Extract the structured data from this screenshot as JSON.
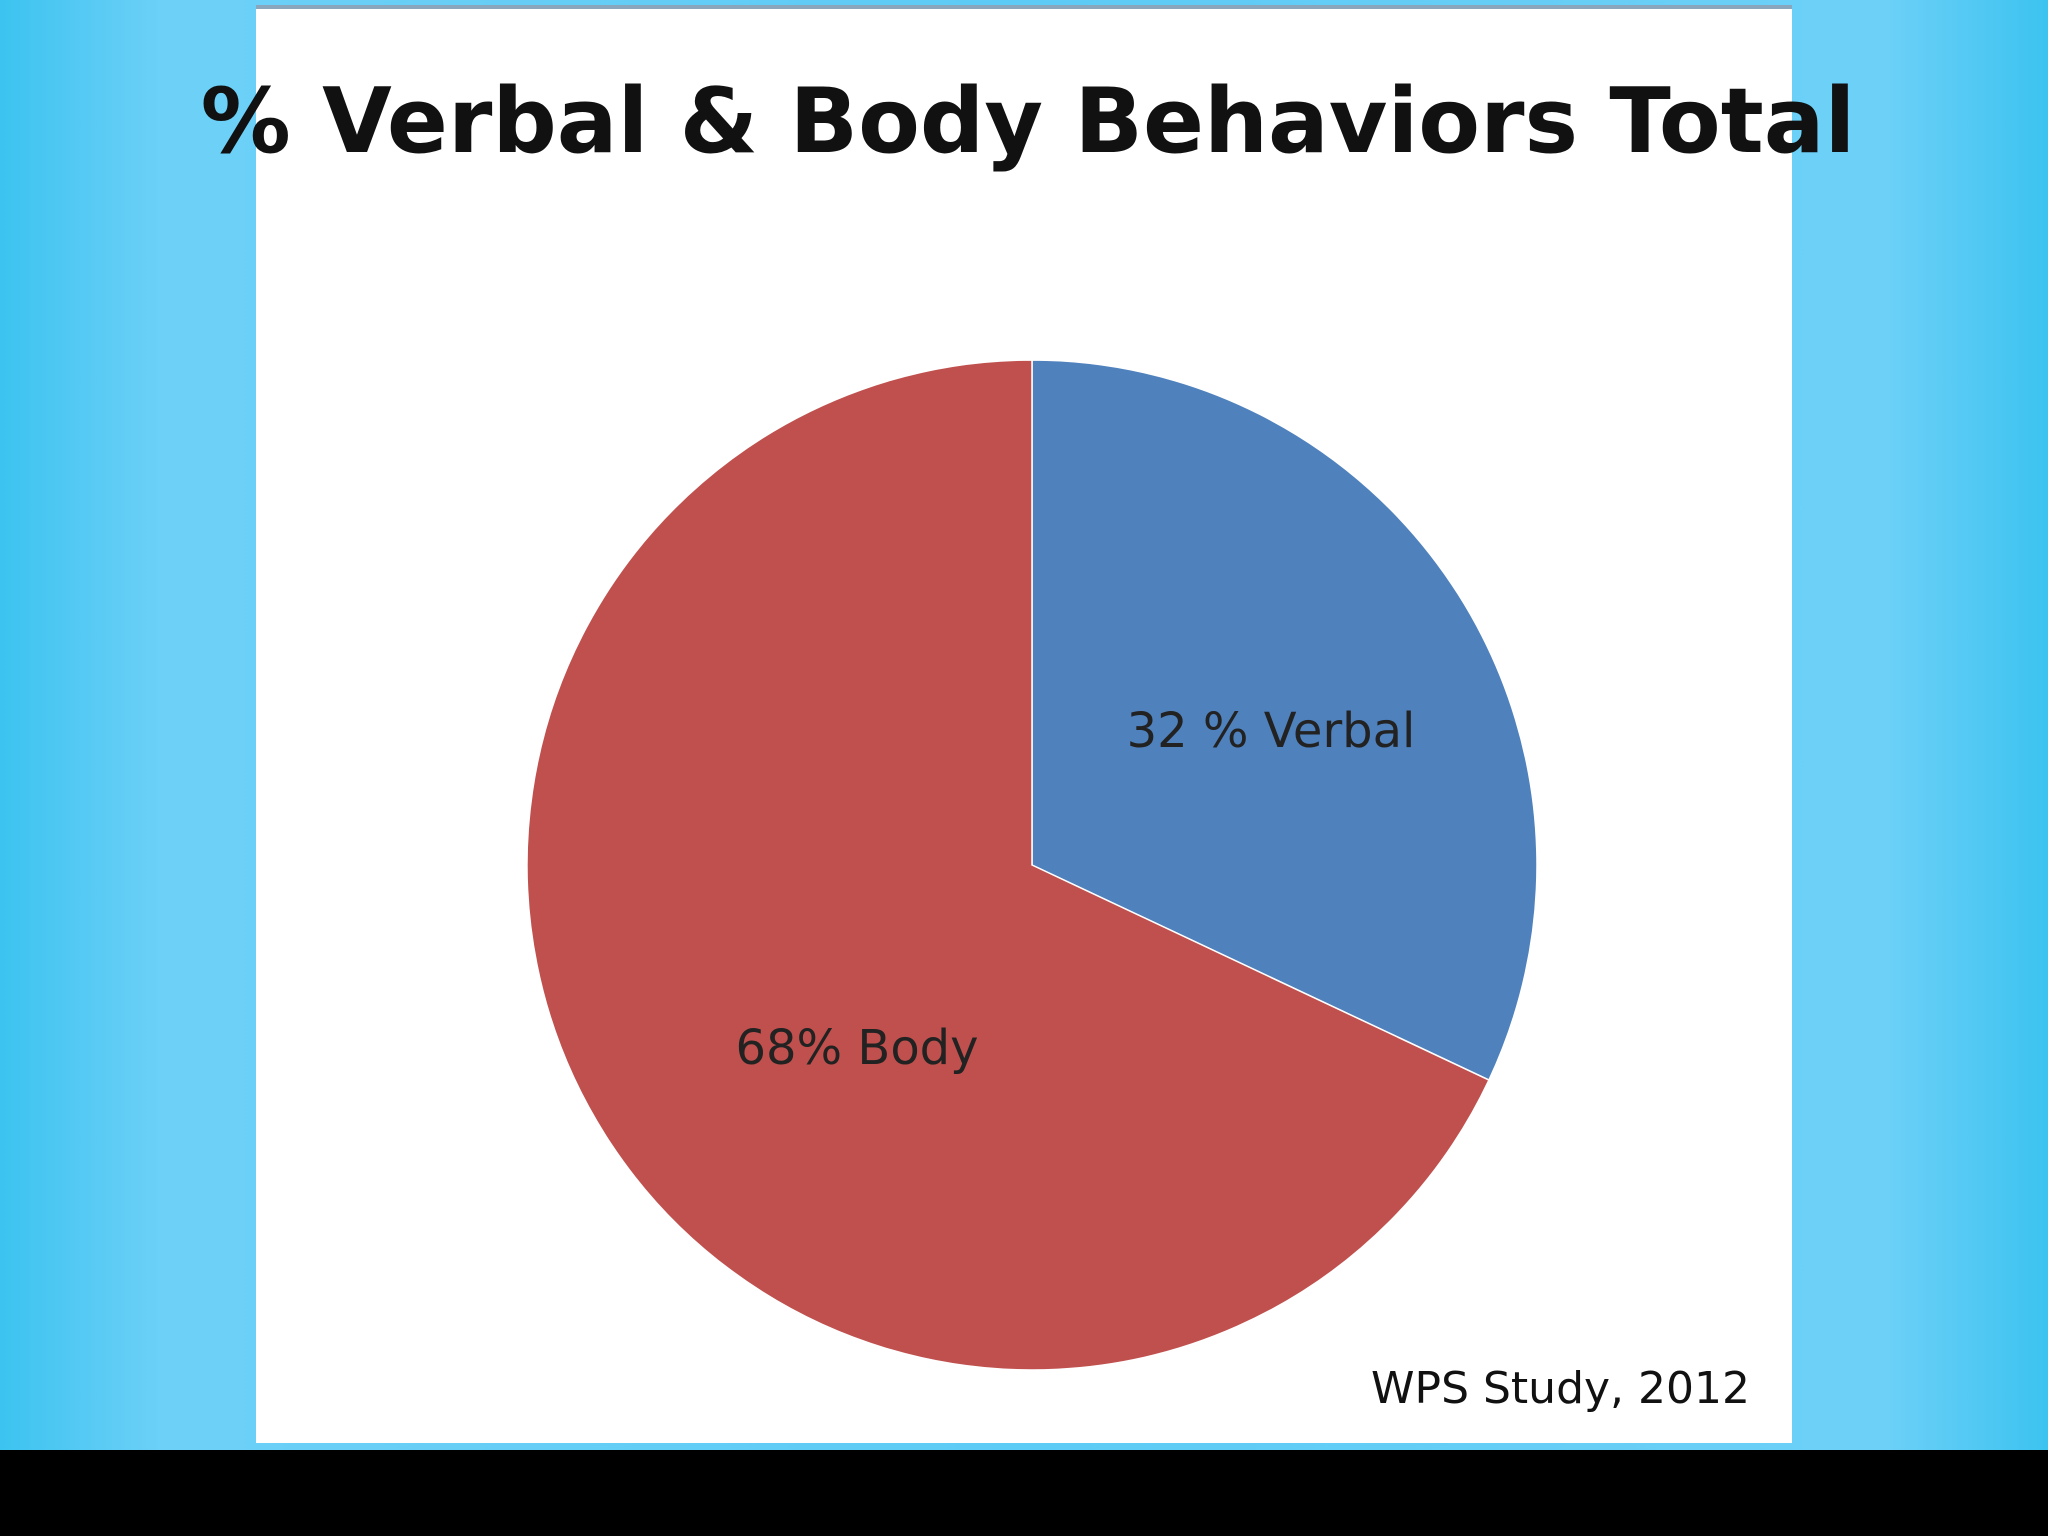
{
  "chart_data": {
    "type": "pie",
    "title": "% Verbal & Body Behaviors Total",
    "values": [
      32,
      68
    ],
    "value_labels": [
      "32 % Verbal",
      "68% Body"
    ],
    "colors": [
      "#4f81bd",
      "#c0504d"
    ],
    "source": "WPS Study, 2012"
  }
}
